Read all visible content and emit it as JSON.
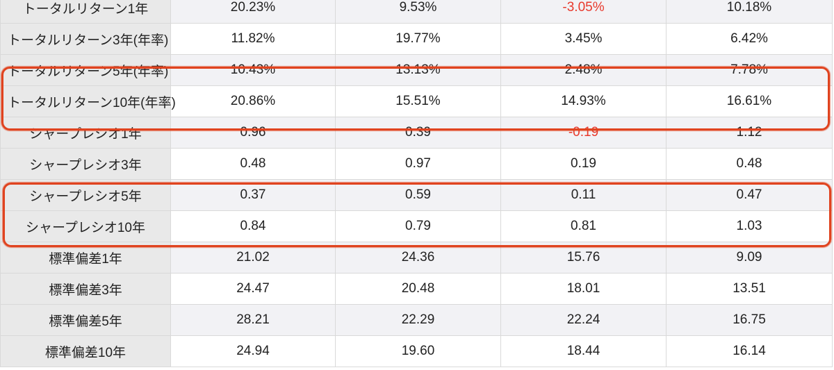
{
  "table": {
    "rows": [
      {
        "label": "トータルリターン1年",
        "values": [
          "20.23%",
          "9.53%",
          "-3.05%",
          "10.18%"
        ],
        "negative": [
          false,
          false,
          true,
          false
        ]
      },
      {
        "label": "トータルリターン3年(年率)",
        "values": [
          "11.82%",
          "19.77%",
          "3.45%",
          "6.42%"
        ],
        "negative": [
          false,
          false,
          false,
          false
        ]
      },
      {
        "label": "トータルリターン5年(年率)",
        "values": [
          "10.43%",
          "13.13%",
          "2.48%",
          "7.78%"
        ],
        "negative": [
          false,
          false,
          false,
          false
        ]
      },
      {
        "label": "トータルリターン10年(年率)",
        "values": [
          "20.86%",
          "15.51%",
          "14.93%",
          "16.61%"
        ],
        "negative": [
          false,
          false,
          false,
          false
        ]
      },
      {
        "label": "シャープレシオ1年",
        "values": [
          "0.96",
          "0.39",
          "-0.19",
          "1.12"
        ],
        "negative": [
          false,
          false,
          true,
          false
        ]
      },
      {
        "label": "シャープレシオ3年",
        "values": [
          "0.48",
          "0.97",
          "0.19",
          "0.48"
        ],
        "negative": [
          false,
          false,
          false,
          false
        ]
      },
      {
        "label": "シャープレシオ5年",
        "values": [
          "0.37",
          "0.59",
          "0.11",
          "0.47"
        ],
        "negative": [
          false,
          false,
          false,
          false
        ]
      },
      {
        "label": "シャープレシオ10年",
        "values": [
          "0.84",
          "0.79",
          "0.81",
          "1.03"
        ],
        "negative": [
          false,
          false,
          false,
          false
        ]
      },
      {
        "label": "標準偏差1年",
        "values": [
          "21.02",
          "24.36",
          "15.76",
          "9.09"
        ],
        "negative": [
          false,
          false,
          false,
          false
        ]
      },
      {
        "label": "標準偏差3年",
        "values": [
          "24.47",
          "20.48",
          "18.01",
          "13.51"
        ],
        "negative": [
          false,
          false,
          false,
          false
        ]
      },
      {
        "label": "標準偏差5年",
        "values": [
          "28.21",
          "22.29",
          "22.24",
          "16.75"
        ],
        "negative": [
          false,
          false,
          false,
          false
        ]
      },
      {
        "label": "標準偏差10年",
        "values": [
          "24.94",
          "19.60",
          "18.44",
          "16.14"
        ],
        "negative": [
          false,
          false,
          false,
          false
        ]
      }
    ]
  },
  "colors": {
    "negative": "#e8392c",
    "highlight": "#e0431f"
  }
}
